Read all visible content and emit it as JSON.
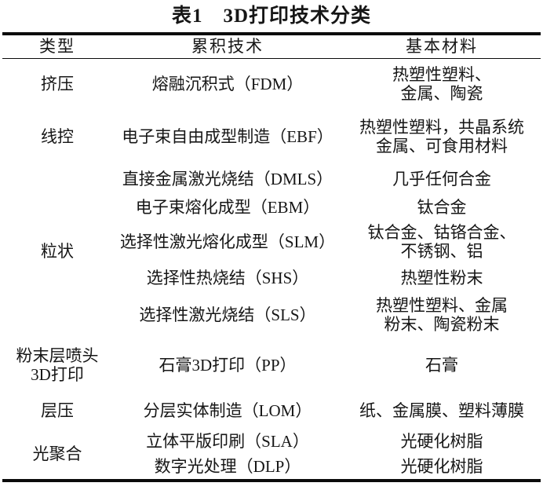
{
  "title": "表1　3D打印技术分类",
  "colors": {
    "ink": "#161616",
    "rule": "#0b0b0b",
    "background": "#ffffff"
  },
  "table": {
    "headers": [
      "类型",
      "累积技术",
      "基本材料"
    ],
    "groups": [
      {
        "type_lines": [
          "挤压"
        ],
        "rows": [
          {
            "tech": "熔融沉积式（FDM）",
            "material_lines": [
              "热塑性塑料、",
              "金属、陶瓷"
            ]
          }
        ]
      },
      {
        "type_lines": [
          "线控"
        ],
        "rows": [
          {
            "tech": "电子束自由成型制造（EBF）",
            "material_lines": [
              "热塑性塑料，共晶系统",
              "金属、可食用材料"
            ]
          }
        ]
      },
      {
        "type_lines": [
          "粒状"
        ],
        "rows": [
          {
            "tech": "直接金属激光烧结（DMLS）",
            "material_lines": [
              "几乎任何合金"
            ]
          },
          {
            "tech": "电子束熔化成型（EBM）",
            "material_lines": [
              "钛合金"
            ]
          },
          {
            "tech": "选择性激光熔化成型（SLM）",
            "material_lines": [
              "钛合金、钴铬合金、",
              "不锈钢、铝"
            ]
          },
          {
            "tech": "选择性热烧结（SHS）",
            "material_lines": [
              "热塑性粉末"
            ]
          },
          {
            "tech": "选择性激光烧结（SLS）",
            "material_lines": [
              "热塑性塑料、金属",
              "粉末、陶瓷粉末"
            ]
          }
        ]
      },
      {
        "type_lines": [
          "粉末层喷头",
          "3D打印"
        ],
        "rows": [
          {
            "tech": "石膏3D打印（PP）",
            "material_lines": [
              "石膏"
            ]
          }
        ]
      },
      {
        "type_lines": [
          "层压"
        ],
        "rows": [
          {
            "tech": "分层实体制造（LOM）",
            "material_lines": [
              "纸、金属膜、塑料薄膜"
            ]
          }
        ]
      },
      {
        "type_lines": [
          "光聚合"
        ],
        "rows": [
          {
            "tech": "立体平版印刷（SLA）",
            "material_lines": [
              "光硬化树脂"
            ]
          },
          {
            "tech": "数字光处理（DLP）",
            "material_lines": [
              "光硬化树脂"
            ]
          }
        ]
      }
    ]
  }
}
